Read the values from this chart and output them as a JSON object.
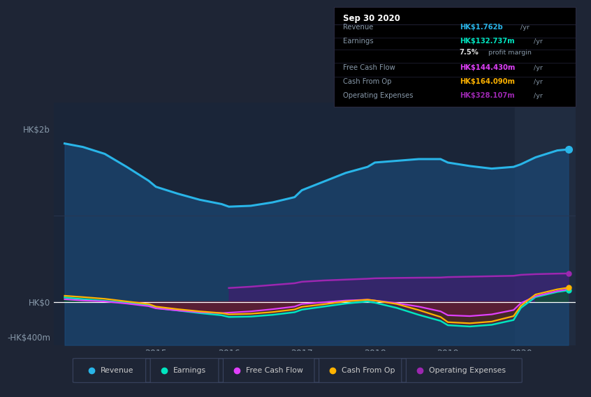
{
  "bg_color": "#1e2535",
  "plot_bg_color": "#1a2538",
  "forecast_bg_color": "#202c40",
  "grid_color": "#2a3650",
  "zero_line_color": "#ffffff",
  "years": [
    2013.75,
    2014.0,
    2014.3,
    2014.6,
    2014.9,
    2015.0,
    2015.3,
    2015.6,
    2015.9,
    2016.0,
    2016.3,
    2016.6,
    2016.9,
    2017.0,
    2017.3,
    2017.6,
    2017.9,
    2018.0,
    2018.3,
    2018.6,
    2018.9,
    2019.0,
    2019.3,
    2019.6,
    2019.9,
    2020.0,
    2020.2,
    2020.5,
    2020.65
  ],
  "revenue": [
    1830,
    1790,
    1710,
    1560,
    1400,
    1330,
    1250,
    1180,
    1130,
    1100,
    1110,
    1150,
    1210,
    1290,
    1390,
    1490,
    1560,
    1610,
    1630,
    1650,
    1650,
    1610,
    1570,
    1540,
    1560,
    1590,
    1670,
    1750,
    1762
  ],
  "earnings": [
    50,
    30,
    10,
    -10,
    -40,
    -70,
    -100,
    -130,
    -155,
    -175,
    -170,
    -150,
    -120,
    -90,
    -55,
    -20,
    5,
    -10,
    -70,
    -150,
    -220,
    -270,
    -285,
    -265,
    -210,
    -70,
    55,
    115,
    133
  ],
  "free_cash_flow": [
    30,
    15,
    5,
    -20,
    -50,
    -75,
    -100,
    -120,
    -130,
    -125,
    -110,
    -85,
    -55,
    -25,
    -5,
    15,
    25,
    15,
    -15,
    -55,
    -110,
    -155,
    -165,
    -145,
    -95,
    -15,
    65,
    125,
    144
  ],
  "cash_from_op": [
    70,
    55,
    35,
    5,
    -25,
    -55,
    -85,
    -110,
    -130,
    -145,
    -138,
    -118,
    -88,
    -58,
    -28,
    5,
    25,
    15,
    -25,
    -95,
    -175,
    -235,
    -248,
    -228,
    -165,
    -45,
    85,
    145,
    164
  ],
  "operating_expenses": [
    null,
    null,
    null,
    null,
    null,
    null,
    null,
    null,
    null,
    160,
    175,
    195,
    215,
    232,
    247,
    257,
    267,
    272,
    276,
    279,
    281,
    286,
    291,
    296,
    301,
    312,
    320,
    326,
    328
  ],
  "revenue_color": "#29b5e8",
  "earnings_color": "#00e5c0",
  "fcf_color": "#e040fb",
  "cashop_color": "#ffb300",
  "opex_color": "#9c27b0",
  "revenue_fill": "#1a4a7a",
  "opex_fill": "#4a1472",
  "earnings_neg_fill": "#6b1020",
  "earnings_pos_fill": "#004d40",
  "fcf_neg_fill": "#7b0e4f",
  "cashop_neg_fill": "#4a2a10",
  "ytick_labels": [
    "HK$2b",
    "HK$0",
    "-HK$400m"
  ],
  "ytick_values": [
    2000,
    0,
    -400
  ],
  "y_gridline_val": 1000,
  "xtick_labels": [
    "2015",
    "2016",
    "2017",
    "2018",
    "2019",
    "2020"
  ],
  "xtick_values": [
    2015,
    2016,
    2017,
    2018,
    2019,
    2020
  ],
  "tooltip_title": "Sep 30 2020",
  "tooltip_rows": [
    {
      "label": "Revenue",
      "value": "HK$1.762b",
      "unit": "/yr",
      "color": "#29b5e8"
    },
    {
      "label": "Earnings",
      "value": "HK$132.737m",
      "unit": "/yr",
      "color": "#00e5c0"
    },
    {
      "label": "",
      "value": "7.5%",
      "unit": " profit margin",
      "color": "#dddddd"
    },
    {
      "label": "Free Cash Flow",
      "value": "HK$144.430m",
      "unit": "/yr",
      "color": "#e040fb"
    },
    {
      "label": "Cash From Op",
      "value": "HK$164.090m",
      "unit": "/yr",
      "color": "#ffb300"
    },
    {
      "label": "Operating Expenses",
      "value": "HK$328.107m",
      "unit": "/yr",
      "color": "#9c27b0"
    }
  ],
  "legend_items": [
    {
      "label": "Revenue",
      "color": "#29b5e8"
    },
    {
      "label": "Earnings",
      "color": "#00e5c0"
    },
    {
      "label": "Free Cash Flow",
      "color": "#e040fb"
    },
    {
      "label": "Cash From Op",
      "color": "#ffb300"
    },
    {
      "label": "Operating Expenses",
      "color": "#9c27b0"
    }
  ],
  "ylim": [
    -500,
    2300
  ],
  "xlim": [
    2013.6,
    2020.75
  ],
  "forecast_start": 2019.92
}
